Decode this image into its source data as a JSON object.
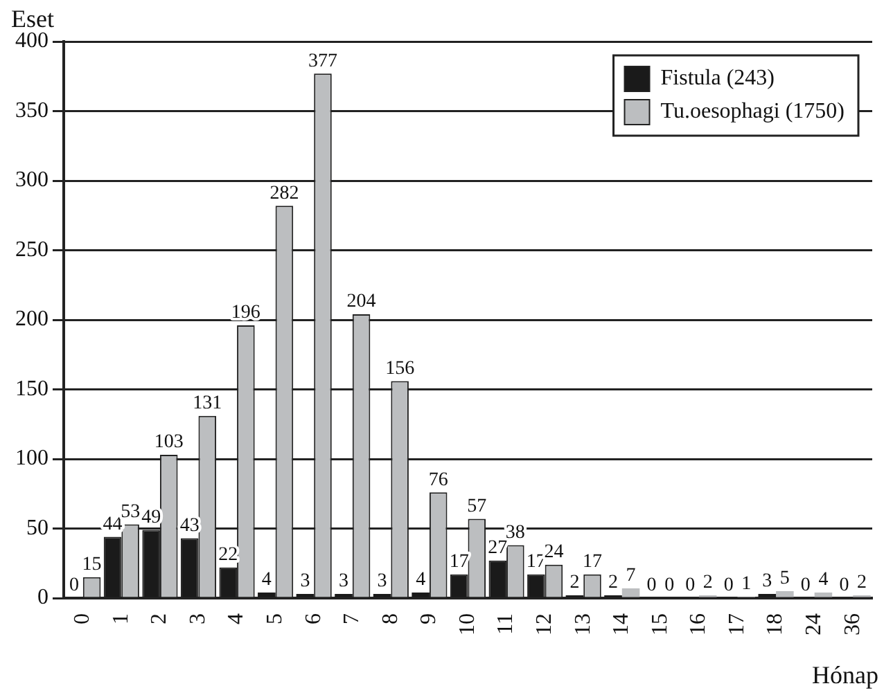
{
  "chart_data": {
    "type": "bar",
    "xlabel": "Hónap",
    "ylabel": "Eset",
    "categories": [
      "0",
      "1",
      "2",
      "3",
      "4",
      "5",
      "6",
      "7",
      "8",
      "9",
      "10",
      "11",
      "12",
      "13",
      "14",
      "15",
      "16",
      "17",
      "18",
      "24",
      "36"
    ],
    "series": [
      {
        "name": "Fistula (243)",
        "color": "#1a1a1a",
        "values": [
          0,
          44,
          49,
          43,
          22,
          4,
          3,
          3,
          3,
          4,
          17,
          27,
          17,
          2,
          2,
          0,
          0,
          0,
          3,
          0,
          0
        ]
      },
      {
        "name": "Tu.oesophagi (1750)",
        "color": "#bcbec0",
        "values": [
          15,
          53,
          103,
          131,
          196,
          282,
          377,
          204,
          156,
          76,
          57,
          38,
          24,
          17,
          7,
          0,
          2,
          1,
          5,
          4,
          2
        ]
      }
    ],
    "ylim": [
      0,
      400
    ],
    "yticks": [
      0,
      50,
      100,
      150,
      200,
      250,
      300,
      350,
      400
    ],
    "grid": "y",
    "legend": "top right",
    "data_labels": true
  }
}
